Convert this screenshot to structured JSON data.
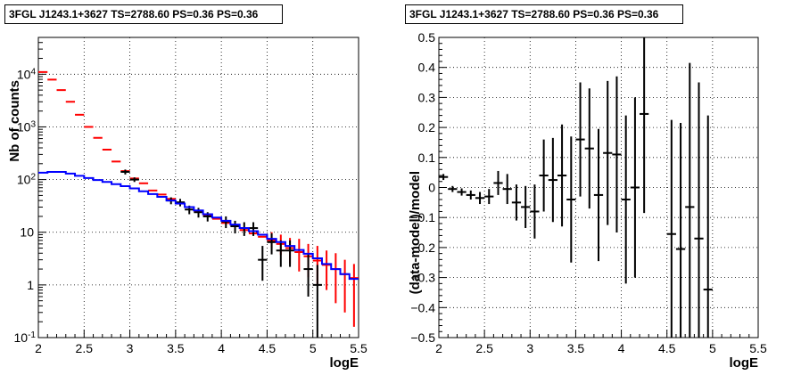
{
  "chart_data": [
    {
      "type": "scatter",
      "title": "3FGL J1243.1+3627 TS=2788.60 PS=0.36 PS=0.36",
      "xlabel": "logE",
      "ylabel": "Nb of counts",
      "xlim": [
        2,
        5.5
      ],
      "ylim": [
        0.1,
        50000
      ],
      "ylog": true,
      "grid": true,
      "x_ticks": [
        "2",
        "2.5",
        "3",
        "3.5",
        "4",
        "4.5",
        "5",
        "5.5"
      ],
      "y_ticks": [
        {
          "v": 0.1,
          "base": "10",
          "exp": "-1"
        },
        {
          "v": 1,
          "base": "1",
          "exp": ""
        },
        {
          "v": 10,
          "base": "10",
          "exp": ""
        },
        {
          "v": 100,
          "base": "10",
          "exp": "2"
        },
        {
          "v": 1000,
          "base": "10",
          "exp": "3"
        },
        {
          "v": 10000,
          "base": "10",
          "exp": "4"
        }
      ],
      "bin_width": 0.1,
      "series": [
        {
          "kind": "model-points",
          "color": "#ff0000",
          "x": [
            2.05,
            2.15,
            2.25,
            2.35,
            2.45,
            2.55,
            2.65,
            2.75,
            2.85,
            2.95,
            3.05,
            3.15,
            3.25,
            3.35,
            3.45,
            3.55,
            3.65,
            3.75,
            3.85,
            3.95,
            4.05,
            4.15,
            4.25,
            4.35,
            4.45,
            4.55,
            4.65,
            4.75,
            4.85,
            4.95,
            5.05,
            5.15,
            5.25,
            5.35,
            5.45
          ],
          "y": [
            11000,
            7900,
            5000,
            3000,
            1700,
            1000,
            620,
            370,
            220,
            145,
            105,
            85,
            62,
            52,
            43,
            35,
            30,
            25,
            21,
            18,
            15,
            13,
            11,
            9.5,
            8.2,
            7.0,
            6.0,
            5.0,
            4.2,
            3.5,
            2.9,
            2.4,
            2.0,
            1.6,
            1.35
          ],
          "ylo": [
            11000,
            7900,
            5000,
            3000,
            1700,
            1000,
            620,
            370,
            220,
            145,
            105,
            85,
            62,
            52,
            43,
            35,
            30,
            25,
            21,
            18,
            15,
            13,
            11,
            9.5,
            8.2,
            5.0,
            3.7,
            2.5,
            1.8,
            1.4,
            1.0,
            0.8,
            0.45,
            0.3,
            0.16
          ],
          "yhi": [
            11000,
            7900,
            5000,
            3000,
            1700,
            1000,
            620,
            370,
            220,
            145,
            105,
            85,
            62,
            52,
            43,
            35,
            30,
            25,
            21,
            18,
            15,
            13,
            11,
            9.5,
            8.2,
            10.0,
            9.0,
            7.8,
            7.5,
            6.0,
            5.5,
            4.5,
            4.0,
            3.0,
            2.5
          ]
        },
        {
          "kind": "data-points",
          "color": "#000000",
          "x": [
            2.95,
            3.05,
            3.45,
            3.55,
            3.65,
            3.75,
            3.85,
            4.05,
            4.15,
            4.25,
            4.35,
            4.45,
            4.55,
            4.65,
            4.75,
            4.95,
            5.05
          ],
          "y": [
            140,
            100,
            40,
            37,
            27,
            24,
            20,
            16,
            13,
            12,
            12,
            3,
            6.5,
            4.5,
            4.5,
            2,
            1
          ],
          "ylo": [
            125,
            90,
            34,
            31,
            22,
            19,
            16,
            12,
            9.5,
            8.5,
            8.5,
            1.2,
            3.8,
            2.2,
            2.2,
            0.6,
            0.1
          ],
          "yhi": [
            155,
            110,
            46,
            43,
            32,
            29,
            24,
            20,
            16.5,
            15.5,
            15.5,
            5.5,
            9.5,
            7,
            7,
            3.8,
            2.4
          ]
        },
        {
          "kind": "model-histogram",
          "color": "#0000ff",
          "edges": [
            2.0,
            2.1,
            2.2,
            2.3,
            2.4,
            2.5,
            2.6,
            2.7,
            2.8,
            2.9,
            3.0,
            3.1,
            3.2,
            3.3,
            3.4,
            3.5,
            3.6,
            3.7,
            3.8,
            3.9,
            4.0,
            4.1,
            4.2,
            4.3,
            4.4,
            4.5,
            4.6,
            4.7,
            4.8,
            4.9,
            5.0,
            5.1,
            5.2,
            5.3,
            5.4,
            5.5
          ],
          "values": [
            135,
            140,
            140,
            130,
            118,
            107,
            98,
            90,
            82,
            75,
            68,
            60,
            53,
            47,
            40,
            35,
            30,
            26,
            22,
            19,
            16.5,
            14,
            12,
            10.5,
            9,
            7.5,
            6.5,
            5.5,
            4.6,
            3.9,
            3.2,
            2.5,
            2.0,
            1.6,
            1.3
          ]
        }
      ]
    },
    {
      "type": "scatter",
      "title": "3FGL J1243.1+3627 TS=2788.60 PS=0.36 PS=0.36",
      "xlabel": "logE",
      "ylabel": "(data-model)/model",
      "xlim": [
        2,
        5.5
      ],
      "ylim": [
        -0.5,
        0.5
      ],
      "grid": true,
      "x_ticks": [
        "2",
        "2.5",
        "3",
        "3.5",
        "4",
        "4.5",
        "5",
        "5.5"
      ],
      "y_ticks": [
        "−0.5",
        "−0.4",
        "−0.3",
        "−0.2",
        "−0.1",
        "0",
        "0.1",
        "0.2",
        "0.3",
        "0.4",
        "0.5"
      ],
      "bin_width": 0.1,
      "series": [
        {
          "kind": "residuals",
          "color": "#000000",
          "x": [
            2.05,
            2.15,
            2.25,
            2.35,
            2.45,
            2.55,
            2.65,
            2.75,
            2.85,
            2.95,
            3.05,
            3.15,
            3.25,
            3.35,
            3.45,
            3.55,
            3.65,
            3.75,
            3.85,
            3.95,
            4.05,
            4.15,
            4.25,
            4.55,
            4.65,
            4.75,
            4.85,
            4.95
          ],
          "y": [
            0.035,
            -0.005,
            -0.015,
            -0.025,
            -0.035,
            -0.03,
            0.015,
            -0.005,
            -0.05,
            -0.065,
            -0.08,
            0.04,
            0.025,
            0.04,
            -0.04,
            0.16,
            0.13,
            -0.025,
            0.115,
            0.11,
            -0.04,
            0.0,
            0.245,
            -0.155,
            -0.205,
            -0.065,
            -0.17,
            -0.34
          ],
          "err": [
            0.01,
            0.01,
            0.012,
            0.015,
            0.02,
            0.025,
            0.04,
            0.05,
            0.06,
            0.07,
            0.09,
            0.12,
            0.14,
            0.17,
            0.21,
            0.19,
            0.2,
            0.22,
            0.24,
            0.26,
            0.28,
            0.3,
            0.33,
            0.38,
            0.42,
            0.48,
            0.52,
            0.58
          ]
        }
      ]
    }
  ]
}
